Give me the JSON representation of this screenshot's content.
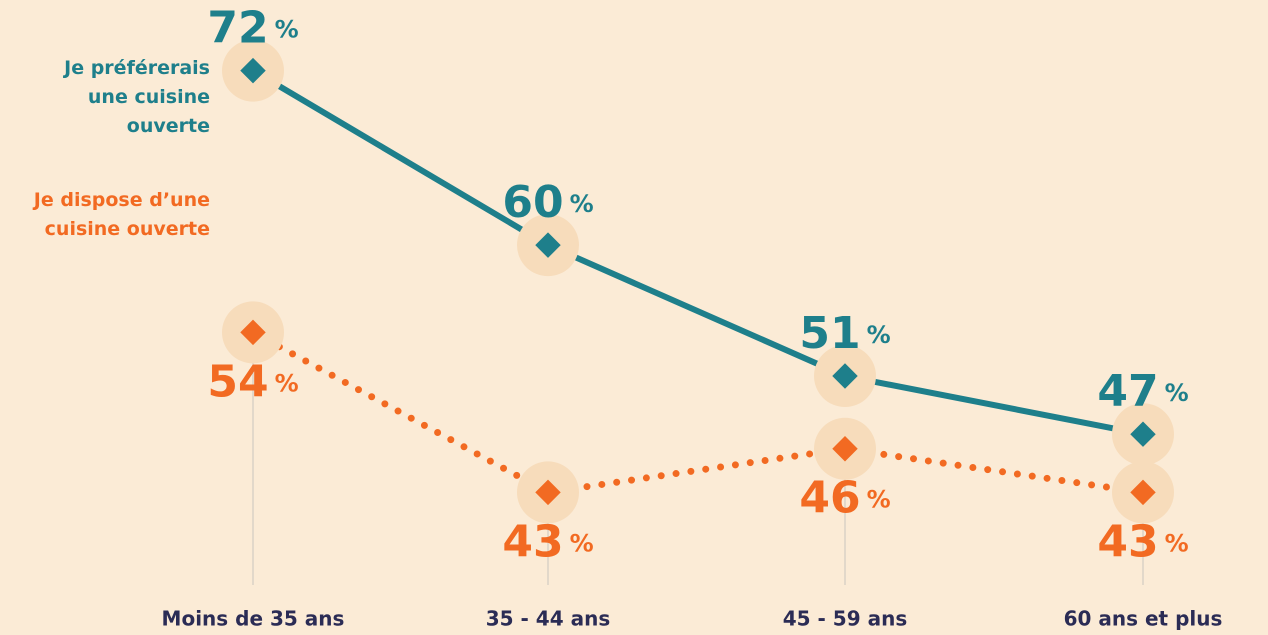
{
  "chart_data": {
    "type": "line",
    "categories": [
      "Moins de 35 ans",
      "35 - 44 ans",
      "45 - 59 ans",
      "60 ans et plus"
    ],
    "series": [
      {
        "name": "Je préférerais une cuisine ouverte",
        "color": "#1e7f8b",
        "style": "solid",
        "label_position": "above",
        "values": [
          72,
          60,
          51,
          47
        ]
      },
      {
        "name": "Je dispose d’une cuisine ouverte",
        "color": "#f26a22",
        "style": "dotted",
        "label_position": "below",
        "values": [
          54,
          43,
          46,
          43
        ]
      }
    ],
    "unit": "%",
    "ylim": [
      40,
      75
    ],
    "grid": false
  }
}
